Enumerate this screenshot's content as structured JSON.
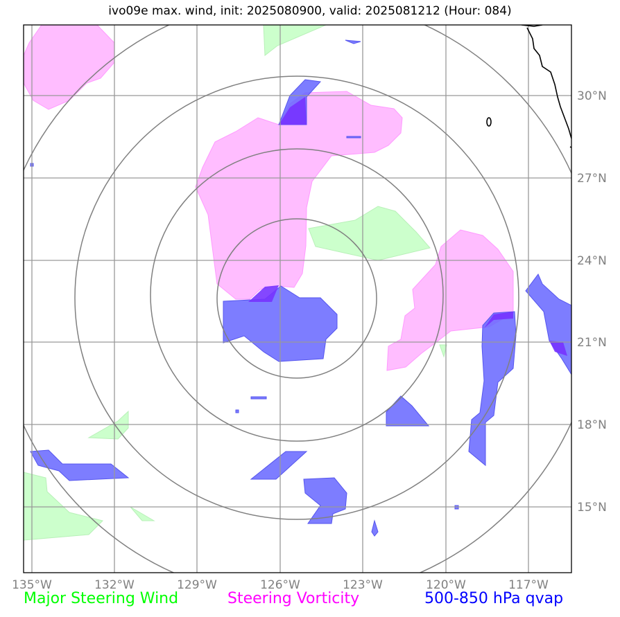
{
  "title": "ivo09e max. wind, init: 2025080900, valid: 2025081212 (Hour: 084)",
  "legend": {
    "wind": "Major Steering Wind",
    "vorticity": "Steering Vorticity",
    "qvap": "500-850 hPa qvap"
  },
  "colors": {
    "wind": "#ccffcc",
    "vorticity": "#ffaaff",
    "qvap": "#6666ff",
    "overlap": "#7733ff",
    "grid": "#999999",
    "rings": "#808080",
    "coast": "#000000"
  },
  "axes": {
    "lon_labels": [
      "135°W",
      "132°W",
      "129°W",
      "126°W",
      "123°W",
      "120°W",
      "117°W"
    ],
    "lat_labels": [
      "30°N",
      "27°N",
      "24°N",
      "21°N",
      "18°N",
      "15°N"
    ]
  },
  "map_extent": {
    "lon": [
      -135.3,
      -115.5
    ],
    "lat": [
      12.7,
      32.7
    ]
  },
  "storm_center": {
    "lon": -125.6,
    "lat": 22.6
  },
  "range_rings_deg": [
    3,
    5.3,
    8,
    11
  ]
}
